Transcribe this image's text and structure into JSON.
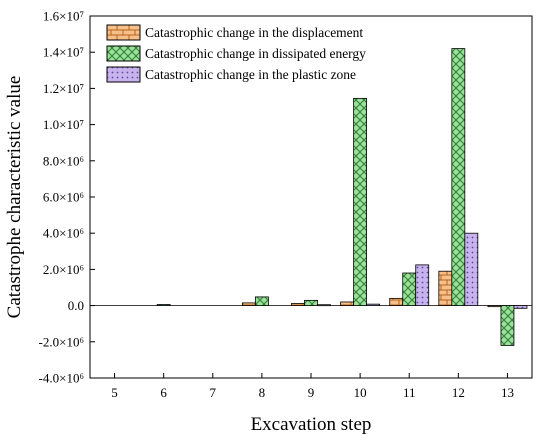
{
  "chart_data": {
    "type": "bar",
    "xlabel": "Excavation step",
    "ylabel": "Catastrophe characteristic value",
    "ylim": [
      -4000000,
      16000000
    ],
    "y_ticks": [
      {
        "value": -4000000,
        "label": "-4.0×10⁶"
      },
      {
        "value": -2000000,
        "label": "-2.0×10⁶"
      },
      {
        "value": 0,
        "label": "0.0"
      },
      {
        "value": 2000000,
        "label": "2.0×10⁶"
      },
      {
        "value": 4000000,
        "label": "4.0×10⁶"
      },
      {
        "value": 6000000,
        "label": "6.0×10⁶"
      },
      {
        "value": 8000000,
        "label": "8.0×10⁶"
      },
      {
        "value": 10000000,
        "label": "1.0×10⁷"
      },
      {
        "value": 12000000,
        "label": "1.2×10⁷"
      },
      {
        "value": 14000000,
        "label": "1.4×10⁷"
      },
      {
        "value": 16000000,
        "label": "1.6×10⁷"
      }
    ],
    "categories": [
      "5",
      "6",
      "7",
      "8",
      "9",
      "10",
      "11",
      "12",
      "13"
    ],
    "legend_position": "top-left",
    "grid": false,
    "series": [
      {
        "name": "Catastrophic change in the displacement",
        "color": "#f7c08a",
        "pattern": "brick",
        "values": [
          0,
          0,
          0,
          150000,
          120000,
          200000,
          400000,
          1900000,
          -60000
        ]
      },
      {
        "name": "Catastrophic change in dissipated energy",
        "color": "#9be09b",
        "pattern": "crosshatch",
        "values": [
          0,
          60000,
          0,
          480000,
          290000,
          11450000,
          1800000,
          14200000,
          -2200000
        ]
      },
      {
        "name": "Catastrophic change in the plastic zone",
        "color": "#c7b3ee",
        "pattern": "dots",
        "values": [
          0,
          0,
          0,
          0,
          50000,
          80000,
          2250000,
          4000000,
          -150000
        ]
      }
    ]
  }
}
